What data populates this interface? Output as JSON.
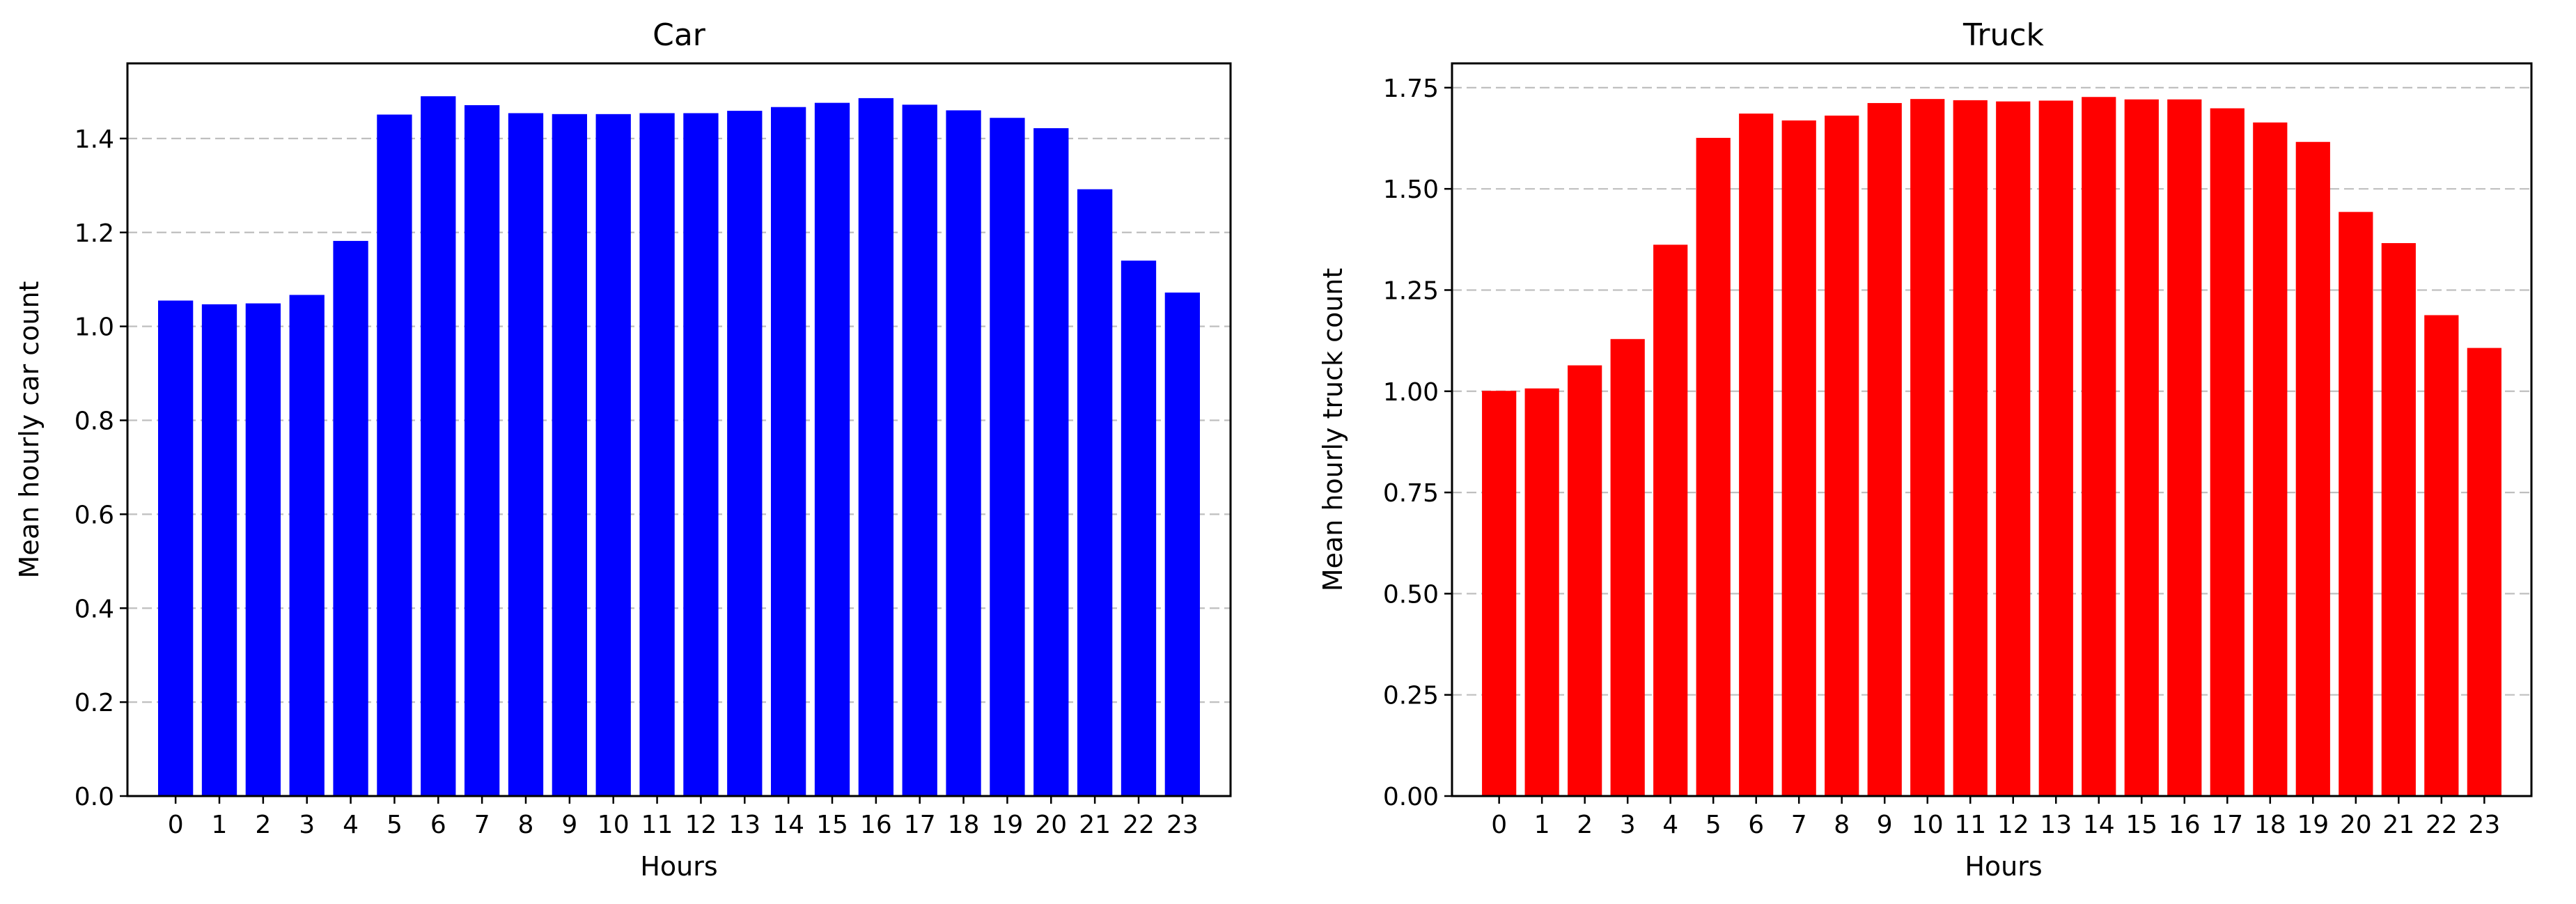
{
  "colors": {
    "car_bar": "#0000ff",
    "truck_bar": "#ff0000",
    "grid": "#bfbfbf"
  },
  "chart_data": [
    {
      "type": "bar",
      "title": "Car",
      "xlabel": "Hours",
      "ylabel": "Mean hourly car count",
      "color": "#0000ff",
      "categories": [
        "0",
        "1",
        "2",
        "3",
        "4",
        "5",
        "6",
        "7",
        "8",
        "9",
        "10",
        "11",
        "12",
        "13",
        "14",
        "15",
        "16",
        "17",
        "18",
        "19",
        "20",
        "21",
        "22",
        "23"
      ],
      "values": [
        1.055,
        1.047,
        1.049,
        1.067,
        1.182,
        1.451,
        1.49,
        1.471,
        1.454,
        1.452,
        1.452,
        1.454,
        1.454,
        1.459,
        1.467,
        1.476,
        1.486,
        1.472,
        1.46,
        1.444,
        1.422,
        1.292,
        1.14,
        1.072
      ],
      "yticks": [
        "0.0",
        "0.2",
        "0.4",
        "0.6",
        "0.8",
        "1.0",
        "1.2",
        "1.4"
      ],
      "ytick_values": [
        0,
        0.2,
        0.4,
        0.6,
        0.8,
        1.0,
        1.2,
        1.4
      ],
      "ylim": [
        0,
        1.56
      ],
      "grid": "horizontal dashed"
    },
    {
      "type": "bar",
      "title": "Truck",
      "xlabel": "Hours",
      "ylabel": "Mean hourly truck count",
      "color": "#ff0000",
      "categories": [
        "0",
        "1",
        "2",
        "3",
        "4",
        "5",
        "6",
        "7",
        "8",
        "9",
        "10",
        "11",
        "12",
        "13",
        "14",
        "15",
        "16",
        "17",
        "18",
        "19",
        "20",
        "21",
        "22",
        "23"
      ],
      "values": [
        1.001,
        1.007,
        1.064,
        1.129,
        1.362,
        1.626,
        1.686,
        1.669,
        1.681,
        1.712,
        1.722,
        1.719,
        1.716,
        1.718,
        1.727,
        1.721,
        1.721,
        1.699,
        1.664,
        1.616,
        1.443,
        1.366,
        1.188,
        1.107
      ],
      "yticks": [
        "0.00",
        "0.25",
        "0.50",
        "0.75",
        "1.00",
        "1.25",
        "1.50",
        "1.75"
      ],
      "ytick_values": [
        0,
        0.25,
        0.5,
        0.75,
        1.0,
        1.25,
        1.5,
        1.75
      ],
      "ylim": [
        0,
        1.81
      ],
      "grid": "horizontal dashed"
    }
  ]
}
